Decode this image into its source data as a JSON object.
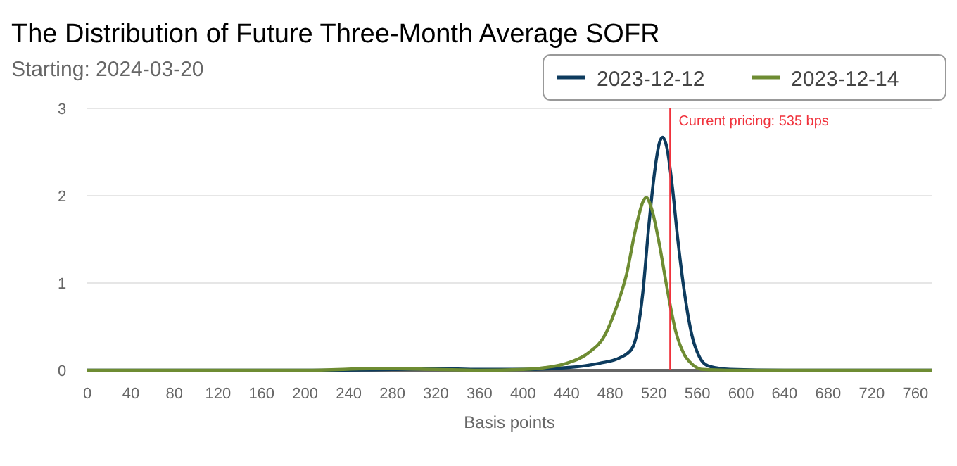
{
  "chart_data": {
    "type": "line",
    "title": "The Distribution of Future Three-Month Average SOFR",
    "subtitle": "Starting: 2024-03-20",
    "xlabel": "Basis points",
    "xlim": [
      0,
      775
    ],
    "xticks": [
      0,
      40,
      80,
      120,
      160,
      200,
      240,
      280,
      320,
      360,
      400,
      440,
      480,
      520,
      560,
      600,
      640,
      680,
      720,
      760
    ],
    "ylim": [
      0,
      3
    ],
    "yticks": [
      0,
      1,
      2,
      3
    ],
    "grid": "y",
    "legend": "top right",
    "marker": "none",
    "line_style": "solid",
    "ref_lines": [
      {
        "axis": "x",
        "value": 535,
        "label": "Current pricing: 535 bps",
        "color": "#f0323c"
      }
    ],
    "series": [
      {
        "name": "2023-12-12",
        "color": "#0d3b5e",
        "x": [
          0,
          200,
          280,
          320,
          360,
          400,
          440,
          470,
          490,
          500,
          505,
          510,
          515,
          520,
          525,
          528,
          532,
          537,
          542,
          548,
          555,
          562,
          570,
          590,
          640,
          775
        ],
        "values": [
          0,
          0,
          0.01,
          0.02,
          0.01,
          0.01,
          0.03,
          0.08,
          0.15,
          0.25,
          0.45,
          0.9,
          1.6,
          2.2,
          2.6,
          2.67,
          2.55,
          2.1,
          1.5,
          0.9,
          0.4,
          0.15,
          0.05,
          0.01,
          0,
          0
        ]
      },
      {
        "name": "2023-12-14",
        "color": "#6e8c32",
        "x": [
          0,
          200,
          270,
          320,
          360,
          400,
          420,
          440,
          460,
          475,
          485,
          495,
          503,
          510,
          513,
          518,
          525,
          532,
          540,
          548,
          556,
          565,
          600,
          775
        ],
        "values": [
          0,
          0,
          0.02,
          0.01,
          0,
          0.01,
          0.03,
          0.08,
          0.2,
          0.4,
          0.7,
          1.1,
          1.6,
          1.93,
          1.98,
          1.85,
          1.45,
          0.95,
          0.45,
          0.18,
          0.06,
          0.01,
          0,
          0
        ]
      }
    ]
  }
}
